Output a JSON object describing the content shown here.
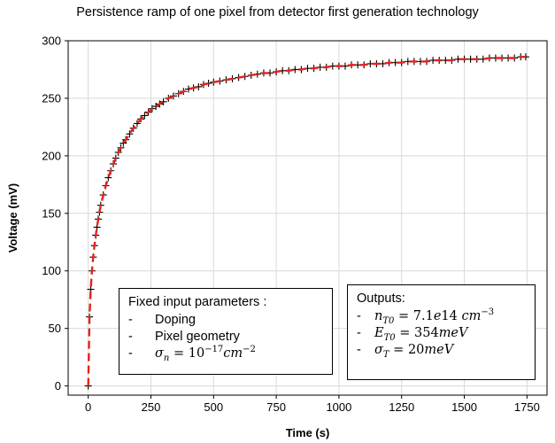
{
  "chart_data": {
    "type": "scatter",
    "title": "Persistence ramp of one pixel from detector first generation technology",
    "xlabel": "Time (s)",
    "ylabel": "Voltage (mV)",
    "xlim": [
      -80,
      1830
    ],
    "ylim": [
      -8,
      300
    ],
    "xticks": [
      0,
      250,
      500,
      750,
      1000,
      1250,
      1500,
      1750
    ],
    "yticks": [
      0,
      50,
      100,
      150,
      200,
      250,
      300
    ],
    "grid": true,
    "series": [
      {
        "style": "black plus markers (measured)",
        "color": "#000000",
        "x": [
          0,
          5,
          10,
          15,
          20,
          25,
          30,
          35,
          40,
          45,
          50,
          60,
          70,
          80,
          90,
          100,
          110,
          120,
          130,
          140,
          150,
          165,
          180,
          195,
          210,
          225,
          240,
          255,
          270,
          285,
          300,
          320,
          340,
          360,
          380,
          400,
          420,
          440,
          460,
          480,
          500,
          525,
          550,
          575,
          600,
          625,
          650,
          675,
          700,
          725,
          750,
          775,
          800,
          825,
          850,
          875,
          900,
          925,
          950,
          975,
          1000,
          1025,
          1050,
          1075,
          1100,
          1125,
          1150,
          1175,
          1200,
          1225,
          1250,
          1275,
          1300,
          1325,
          1350,
          1375,
          1400,
          1425,
          1450,
          1475,
          1500,
          1525,
          1550,
          1575,
          1600,
          1625,
          1650,
          1675,
          1700,
          1725,
          1745
        ],
        "y": [
          0,
          60,
          84,
          100,
          112,
          122,
          131,
          138,
          145,
          151,
          157,
          166,
          174,
          181,
          187,
          193,
          198,
          203,
          207,
          211,
          214,
          219,
          224,
          228,
          232,
          235,
          238,
          241,
          243,
          245,
          247,
          250,
          252,
          254,
          256,
          258,
          259,
          260,
          262,
          263,
          264,
          265,
          266,
          267,
          268,
          269,
          270,
          271,
          272,
          272,
          273,
          274,
          274,
          275,
          275,
          276,
          276,
          277,
          277,
          278,
          278,
          278,
          279,
          279,
          279,
          280,
          280,
          280,
          281,
          281,
          281,
          282,
          282,
          282,
          282,
          283,
          283,
          283,
          283,
          284,
          284,
          284,
          284,
          284,
          285,
          285,
          285,
          285,
          285,
          286,
          286
        ]
      },
      {
        "style": "red dashed line (fit)",
        "color": "#e8201c",
        "x": [
          0,
          5,
          10,
          15,
          20,
          25,
          30,
          35,
          40,
          45,
          50,
          60,
          70,
          80,
          90,
          100,
          110,
          120,
          130,
          140,
          150,
          165,
          180,
          195,
          210,
          225,
          240,
          255,
          270,
          285,
          300,
          320,
          340,
          360,
          380,
          400,
          420,
          440,
          460,
          480,
          500,
          525,
          550,
          575,
          600,
          625,
          650,
          675,
          700,
          725,
          750,
          775,
          800,
          825,
          850,
          875,
          900,
          925,
          950,
          975,
          1000,
          1025,
          1050,
          1075,
          1100,
          1125,
          1150,
          1175,
          1200,
          1225,
          1250,
          1275,
          1300,
          1325,
          1350,
          1375,
          1400,
          1425,
          1450,
          1475,
          1500,
          1525,
          1550,
          1575,
          1600,
          1625,
          1650,
          1675,
          1700,
          1725,
          1745
        ],
        "y": [
          0,
          60,
          84,
          100,
          112,
          122,
          131,
          138,
          145,
          151,
          157,
          166,
          174,
          181,
          187,
          193,
          198,
          203,
          207,
          211,
          214,
          219,
          224,
          228,
          232,
          235,
          238,
          241,
          243,
          245,
          247,
          250,
          252,
          254,
          256,
          258,
          259,
          260,
          262,
          263,
          264,
          265,
          266,
          267,
          268,
          269,
          270,
          271,
          272,
          272,
          273,
          274,
          274,
          275,
          275,
          276,
          276,
          277,
          277,
          278,
          278,
          278,
          279,
          279,
          279,
          280,
          280,
          280,
          281,
          281,
          281,
          282,
          282,
          282,
          282,
          283,
          283,
          283,
          283,
          284,
          284,
          284,
          284,
          284,
          285,
          285,
          285,
          285,
          285,
          286,
          286
        ]
      }
    ],
    "annotations": [
      {
        "heading": "Fixed input parameters :",
        "items": [
          "Doping",
          "Pixel geometry",
          "σn = 10−17 cm−2"
        ]
      },
      {
        "heading": "Outputs:",
        "items": [
          "nT0 = 7.1e14 cm−3",
          "ET0 = 354meV",
          "σT = 20meV"
        ]
      }
    ]
  },
  "boxes": {
    "left": {
      "heading": "Fixed input parameters :",
      "item1": "Doping",
      "item2": "Pixel geometry",
      "item3_sym": "σ",
      "item3_sub": "n",
      "item3_eq": " = 10",
      "item3_exp": "−17",
      "item3_unit": "cm",
      "item3_unit_exp": "−2"
    },
    "right": {
      "heading": "Outputs:",
      "item1_sym": "n",
      "item1_sub": "T0",
      "item1_eq": " = 7.1",
      "item1_e": "e",
      "item1_num": "14 ",
      "item1_unit": "cm",
      "item1_unit_exp": "−3",
      "item2_sym": "E",
      "item2_sub": "T0",
      "item2_eq": " = 354",
      "item2_unit": "meV",
      "item3_sym": "σ",
      "item3_sub": "T",
      "item3_eq": " = 20",
      "item3_unit": "meV"
    },
    "dash": "-"
  }
}
